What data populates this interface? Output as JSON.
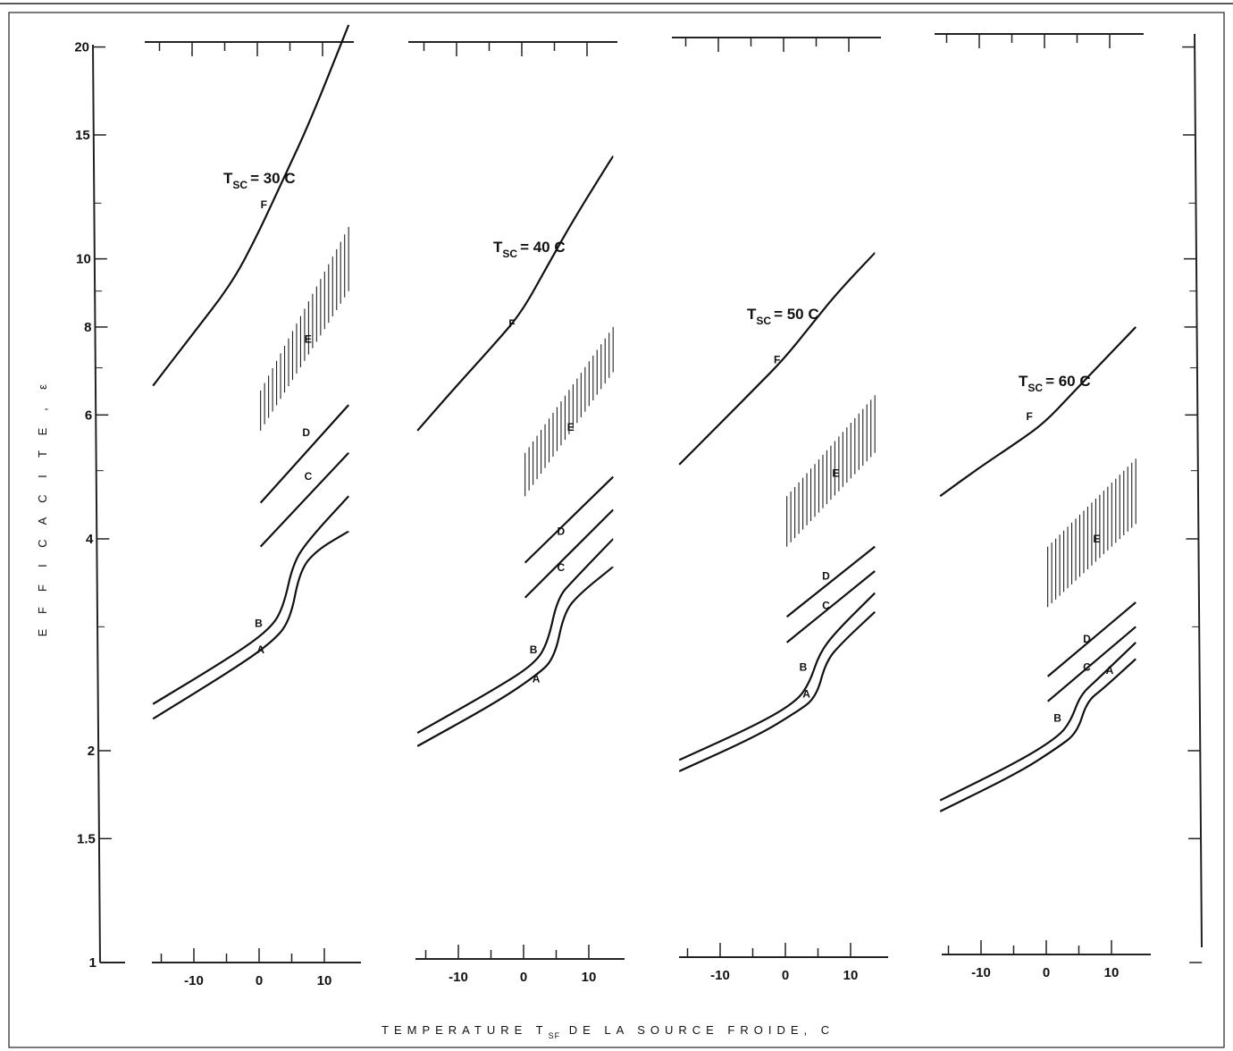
{
  "chart_data": {
    "type": "line",
    "y_axis": {
      "label_letters": [
        "E",
        "F",
        "F",
        "I",
        "C",
        "A",
        "C",
        "I",
        "T",
        "E",
        ",",
        "ε"
      ],
      "scale": "log",
      "ticks": [
        1,
        1.5,
        2,
        4,
        6,
        8,
        10,
        15,
        20
      ],
      "tick_labels": [
        "1",
        "1.5",
        "2",
        "4",
        "6",
        "8",
        "10",
        "15",
        "20"
      ],
      "ylim": [
        1,
        22
      ]
    },
    "x_axis": {
      "label": "TEMPERATURE T",
      "label_sub": "SF",
      "label_rest": " DE LA SOURCE FROIDE, C",
      "ticks": [
        -10,
        0,
        10
      ],
      "tick_labels": [
        "-10",
        "0",
        "10"
      ],
      "xlim": [
        -17,
        16
      ]
    },
    "panels": [
      {
        "title_main": "T",
        "title_sub": "SC",
        "title_rest": "= 30 C",
        "curves": [
          {
            "name": "F",
            "points": [
              [
                -16,
                6.6
              ],
              [
                -10,
                7.8
              ],
              [
                -4,
                9.2
              ],
              [
                0,
                10.8
              ],
              [
                4,
                13.0
              ],
              [
                8,
                15.6
              ],
              [
                14,
                21.5
              ]
            ]
          },
          {
            "name": "D",
            "points": [
              [
                0.5,
                4.5
              ],
              [
                14,
                6.2
              ]
            ]
          },
          {
            "name": "C",
            "points": [
              [
                0.5,
                3.9
              ],
              [
                14,
                5.3
              ]
            ]
          },
          {
            "name": "B",
            "points": [
              [
                -16,
                2.33
              ],
              [
                -4,
                2.72
              ],
              [
                2,
                2.98
              ],
              [
                4,
                3.2
              ],
              [
                5.5,
                3.7
              ],
              [
                8,
                4.0
              ],
              [
                14,
                4.6
              ]
            ]
          },
          {
            "name": "A",
            "points": [
              [
                -16,
                2.22
              ],
              [
                -4,
                2.6
              ],
              [
                2,
                2.84
              ],
              [
                5,
                3.05
              ],
              [
                6.5,
                3.6
              ],
              [
                9,
                3.85
              ],
              [
                14,
                4.1
              ]
            ]
          }
        ],
        "hatch_E": {
          "x_from": 0.5,
          "x_to": 14,
          "y_low_start": 5.7,
          "y_low_end": 9.0,
          "y_high_start": 6.5,
          "y_high_end": 11.1
        },
        "labels": [
          {
            "text": "F",
            "x": 1,
            "y": 11.8
          },
          {
            "text": "E",
            "x": 7.8,
            "y": 7.6
          },
          {
            "text": "D",
            "x": 7.5,
            "y": 5.6
          },
          {
            "text": "C",
            "x": 7.8,
            "y": 4.85
          },
          {
            "text": "B",
            "x": 0.2,
            "y": 3.0
          },
          {
            "text": "A",
            "x": 0.5,
            "y": 2.75
          }
        ]
      },
      {
        "title_main": "T",
        "title_sub": "SC",
        "title_rest": "= 40 C",
        "curves": [
          {
            "name": "F",
            "points": [
              [
                -16,
                5.7
              ],
              [
                -10,
                6.6
              ],
              [
                -4,
                7.6
              ],
              [
                0,
                8.4
              ],
              [
                4,
                9.8
              ],
              [
                8,
                11.4
              ],
              [
                14,
                14.0
              ]
            ]
          },
          {
            "name": "D",
            "points": [
              [
                0.5,
                3.7
              ],
              [
                14,
                4.9
              ]
            ]
          },
          {
            "name": "C",
            "points": [
              [
                0.5,
                3.3
              ],
              [
                14,
                4.4
              ]
            ]
          },
          {
            "name": "B",
            "points": [
              [
                -16,
                2.12
              ],
              [
                -4,
                2.45
              ],
              [
                2,
                2.66
              ],
              [
                4,
                2.85
              ],
              [
                5.5,
                3.3
              ],
              [
                8,
                3.5
              ],
              [
                14,
                4.0
              ]
            ]
          },
          {
            "name": "A",
            "points": [
              [
                -16,
                2.03
              ],
              [
                -4,
                2.34
              ],
              [
                2,
                2.55
              ],
              [
                5,
                2.7
              ],
              [
                6.5,
                3.15
              ],
              [
                9,
                3.35
              ],
              [
                14,
                3.65
              ]
            ]
          }
        ],
        "hatch_E": {
          "x_from": 0.5,
          "x_to": 14,
          "y_low_start": 4.6,
          "y_low_end": 6.9,
          "y_high_start": 5.3,
          "y_high_end": 8.0
        },
        "labels": [
          {
            "text": "F",
            "x": -1.5,
            "y": 8.0
          },
          {
            "text": "E",
            "x": 7.5,
            "y": 5.7
          },
          {
            "text": "D",
            "x": 6,
            "y": 4.05
          },
          {
            "text": "C",
            "x": 6,
            "y": 3.6
          },
          {
            "text": "B",
            "x": 1.8,
            "y": 2.75
          },
          {
            "text": "A",
            "x": 2.2,
            "y": 2.5
          }
        ]
      },
      {
        "title_main": "T",
        "title_sub": "SC",
        "title_rest": "= 50 C",
        "curves": [
          {
            "name": "F",
            "points": [
              [
                -16,
                5.1
              ],
              [
                -10,
                5.8
              ],
              [
                -4,
                6.6
              ],
              [
                0,
                7.2
              ],
              [
                4,
                8.0
              ],
              [
                8,
                8.9
              ],
              [
                14,
                10.2
              ]
            ]
          },
          {
            "name": "D",
            "points": [
              [
                0.5,
                3.1
              ],
              [
                14,
                3.9
              ]
            ]
          },
          {
            "name": "C",
            "points": [
              [
                0.5,
                2.85
              ],
              [
                14,
                3.6
              ]
            ]
          },
          {
            "name": "B",
            "points": [
              [
                -16,
                1.94
              ],
              [
                -4,
                2.18
              ],
              [
                2,
                2.35
              ],
              [
                4,
                2.5
              ],
              [
                5.5,
                2.75
              ],
              [
                8,
                2.95
              ],
              [
                14,
                3.35
              ]
            ]
          },
          {
            "name": "A",
            "points": [
              [
                -16,
                1.87
              ],
              [
                -4,
                2.1
              ],
              [
                2,
                2.27
              ],
              [
                5,
                2.38
              ],
              [
                6.5,
                2.68
              ],
              [
                9,
                2.85
              ],
              [
                14,
                3.15
              ]
            ]
          }
        ],
        "hatch_E": {
          "x_from": 0.5,
          "x_to": 14,
          "y_low_start": 3.9,
          "y_low_end": 5.3,
          "y_high_start": 4.6,
          "y_high_end": 6.4
        },
        "labels": [
          {
            "text": "F",
            "x": -1,
            "y": 7.1
          },
          {
            "text": "E",
            "x": 8,
            "y": 4.9
          },
          {
            "text": "D",
            "x": 6.5,
            "y": 3.5
          },
          {
            "text": "C",
            "x": 6.5,
            "y": 3.18
          },
          {
            "text": "B",
            "x": 3,
            "y": 2.6
          },
          {
            "text": "A",
            "x": 3.5,
            "y": 2.38
          }
        ]
      },
      {
        "title_main": "T",
        "title_sub": "SC",
        "title_rest": "= 60 C",
        "curves": [
          {
            "name": "F",
            "points": [
              [
                -16,
                4.6
              ],
              [
                -10,
                5.05
              ],
              [
                -4,
                5.5
              ],
              [
                0,
                5.85
              ],
              [
                4,
                6.4
              ],
              [
                8,
                7.0
              ],
              [
                14,
                8.0
              ]
            ]
          },
          {
            "name": "D",
            "points": [
              [
                0.5,
                2.55
              ],
              [
                14,
                3.25
              ]
            ]
          },
          {
            "name": "C",
            "points": [
              [
                0.5,
                2.35
              ],
              [
                14,
                3.0
              ]
            ]
          },
          {
            "name": "B",
            "points": [
              [
                -16,
                1.7
              ],
              [
                -4,
                1.93
              ],
              [
                2,
                2.09
              ],
              [
                4,
                2.2
              ],
              [
                5.5,
                2.4
              ],
              [
                8,
                2.52
              ],
              [
                14,
                2.85
              ]
            ]
          },
          {
            "name": "A",
            "points": [
              [
                -16,
                1.64
              ],
              [
                -4,
                1.86
              ],
              [
                2,
                2.02
              ],
              [
                5,
                2.12
              ],
              [
                6.5,
                2.35
              ],
              [
                9,
                2.45
              ],
              [
                14,
                2.7
              ]
            ]
          }
        ],
        "hatch_E": {
          "x_from": 0.5,
          "x_to": 14,
          "y_low_start": 3.2,
          "y_low_end": 4.2,
          "y_high_start": 3.9,
          "y_high_end": 5.2
        },
        "labels": [
          {
            "text": "F",
            "x": -2.3,
            "y": 5.9
          },
          {
            "text": "E",
            "x": 8,
            "y": 3.95
          },
          {
            "text": "D",
            "x": 6.5,
            "y": 2.85
          },
          {
            "text": "C",
            "x": 6.5,
            "y": 2.6
          },
          {
            "text": "B",
            "x": 2,
            "y": 2.2
          },
          {
            "text": "A",
            "x": 10,
            "y": 2.57
          }
        ]
      }
    ]
  }
}
